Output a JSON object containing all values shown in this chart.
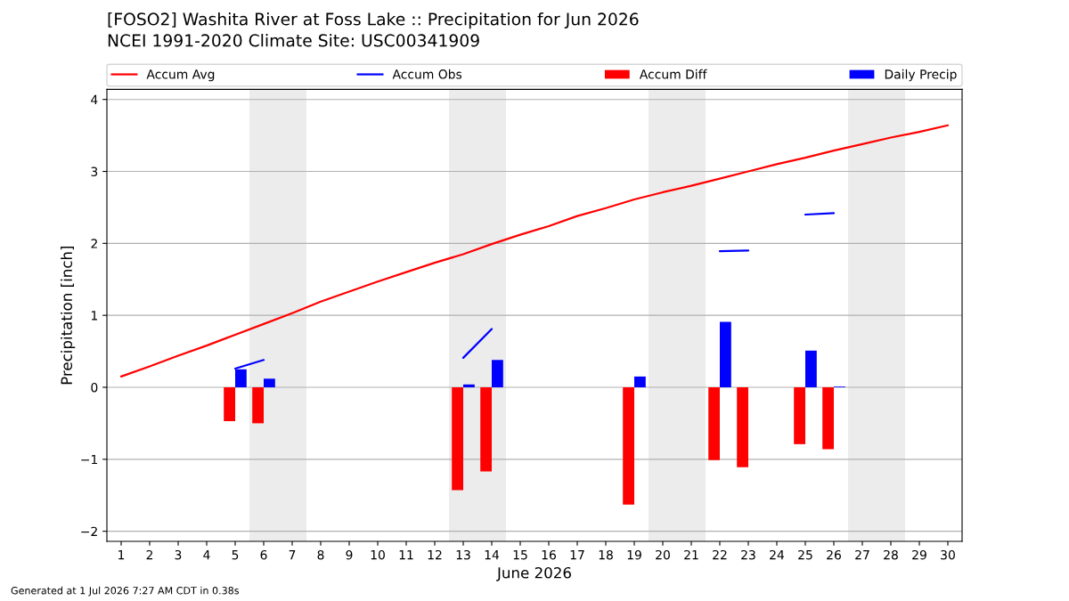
{
  "chart_data": {
    "type": "bar",
    "title": "[FOSO2] Washita River at Foss Lake :: Precipitation for Jun 2026",
    "subtitle": "NCEI 1991-2020 Climate Site: USC00341909",
    "xlabel": "June 2026",
    "ylabel": "Precipitation [inch]",
    "x": [
      1,
      2,
      3,
      4,
      5,
      6,
      7,
      8,
      9,
      10,
      11,
      12,
      13,
      14,
      15,
      16,
      17,
      18,
      19,
      20,
      21,
      22,
      23,
      24,
      25,
      26,
      27,
      28,
      29,
      30
    ],
    "xlim": [
      0.5,
      30.5
    ],
    "xticks": [
      1,
      2,
      3,
      4,
      5,
      6,
      7,
      8,
      9,
      10,
      11,
      12,
      13,
      14,
      15,
      16,
      17,
      18,
      19,
      20,
      21,
      22,
      23,
      24,
      25,
      26,
      27,
      28,
      29,
      30
    ],
    "ylim": [
      -2.14,
      4.14
    ],
    "yticks": [
      -2,
      -1,
      0,
      1,
      2,
      3,
      4
    ],
    "grid": "y",
    "legend": "top",
    "bands": [
      {
        "axis": "x",
        "from": 5.5,
        "to": 7.5,
        "color": "#ececec"
      },
      {
        "axis": "x",
        "from": 12.5,
        "to": 14.5,
        "color": "#ececec"
      },
      {
        "axis": "x",
        "from": 19.5,
        "to": 21.5,
        "color": "#ececec"
      },
      {
        "axis": "x",
        "from": 26.5,
        "to": 28.5,
        "color": "#ececec"
      }
    ],
    "annotations": [
      "Generated at 1 Jul 2026 7:27 AM CDT in 0.38s"
    ],
    "series": [
      {
        "name": "Accum Avg",
        "type": "line",
        "color": "#ff0000",
        "values": [
          0.15,
          0.29,
          0.44,
          0.58,
          0.73,
          0.88,
          1.03,
          1.19,
          1.33,
          1.47,
          1.6,
          1.73,
          1.85,
          1.99,
          2.12,
          2.24,
          2.38,
          2.49,
          2.61,
          2.71,
          2.8,
          2.9,
          3.0,
          3.1,
          3.19,
          3.29,
          3.38,
          3.47,
          3.55,
          3.64
        ]
      },
      {
        "name": "Accum Obs",
        "type": "line",
        "color": "#0000ff",
        "values": [
          null,
          null,
          null,
          null,
          0.26,
          0.38,
          null,
          null,
          null,
          null,
          null,
          null,
          0.41,
          0.81,
          null,
          null,
          null,
          null,
          null,
          null,
          null,
          1.89,
          1.9,
          null,
          2.4,
          2.42,
          null,
          null,
          null,
          null
        ]
      },
      {
        "name": "Accum Diff",
        "color": "#ff0000",
        "values": [
          null,
          null,
          null,
          null,
          -0.47,
          -0.5,
          null,
          null,
          null,
          null,
          null,
          null,
          -1.43,
          -1.17,
          null,
          null,
          null,
          null,
          -1.63,
          null,
          null,
          -1.01,
          -1.11,
          null,
          -0.79,
          -0.86,
          null,
          null,
          null,
          null
        ]
      },
      {
        "name": "Daily Precip",
        "color": "#0000ff",
        "values": [
          null,
          null,
          null,
          null,
          0.25,
          0.12,
          null,
          null,
          null,
          null,
          null,
          null,
          0.04,
          0.38,
          null,
          null,
          null,
          null,
          0.15,
          null,
          null,
          0.91,
          null,
          null,
          0.51,
          0.01,
          null,
          null,
          null,
          null
        ]
      }
    ]
  }
}
